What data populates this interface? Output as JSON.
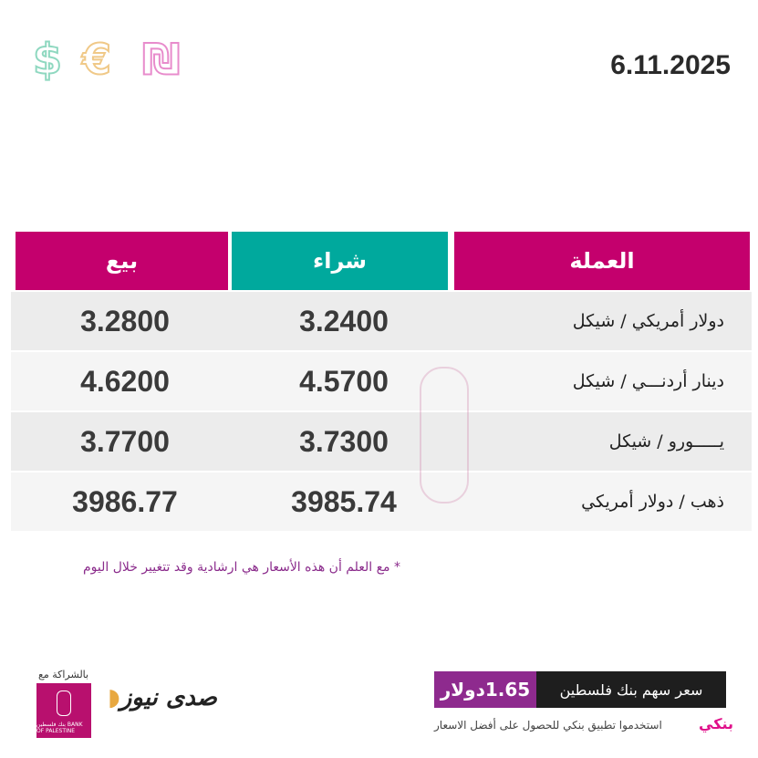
{
  "header": {
    "date": "6.11.2025",
    "currency_icons": [
      "$",
      "€",
      "₪"
    ],
    "colors": {
      "dollar": "#8fd8c0",
      "euro": "#f5d9a3",
      "shekel": "#e88ccc"
    }
  },
  "table": {
    "columns": {
      "currency": "العملة",
      "buy": "شراء",
      "sell": "بيع"
    },
    "colors": {
      "pink": "#c4006d",
      "teal": "#00a99d"
    },
    "rows": [
      {
        "name": "دولار أمريكي / شيكل",
        "buy": "3.2400",
        "sell": "3.2800"
      },
      {
        "name": "دينار أردنـــي / شيكل",
        "buy": "4.5700",
        "sell": "4.6200"
      },
      {
        "name": "يـــــورو / شيكل",
        "buy": "3.7300",
        "sell": "3.7700"
      },
      {
        "name": "ذهب / دولار أمريكي",
        "buy": "3985.74",
        "sell": "3986.77"
      }
    ]
  },
  "note": "* مع العلم أن هذه الأسعار هي ارشادية وقد تتغيير خلال اليوم",
  "footer": {
    "share_label": "سعر سهم بنك فلسطين",
    "share_price": "1.65دولار",
    "app_line": "استخدموا تطبيق بنكي للحصول على أفضل الاسعار",
    "banky_logo": "بنكي",
    "partner_label": "بالشراكة مع",
    "bank_logo": "بنك فلسطين BANK OF PALESTINE",
    "brand_logo": "صدى نيوز"
  }
}
